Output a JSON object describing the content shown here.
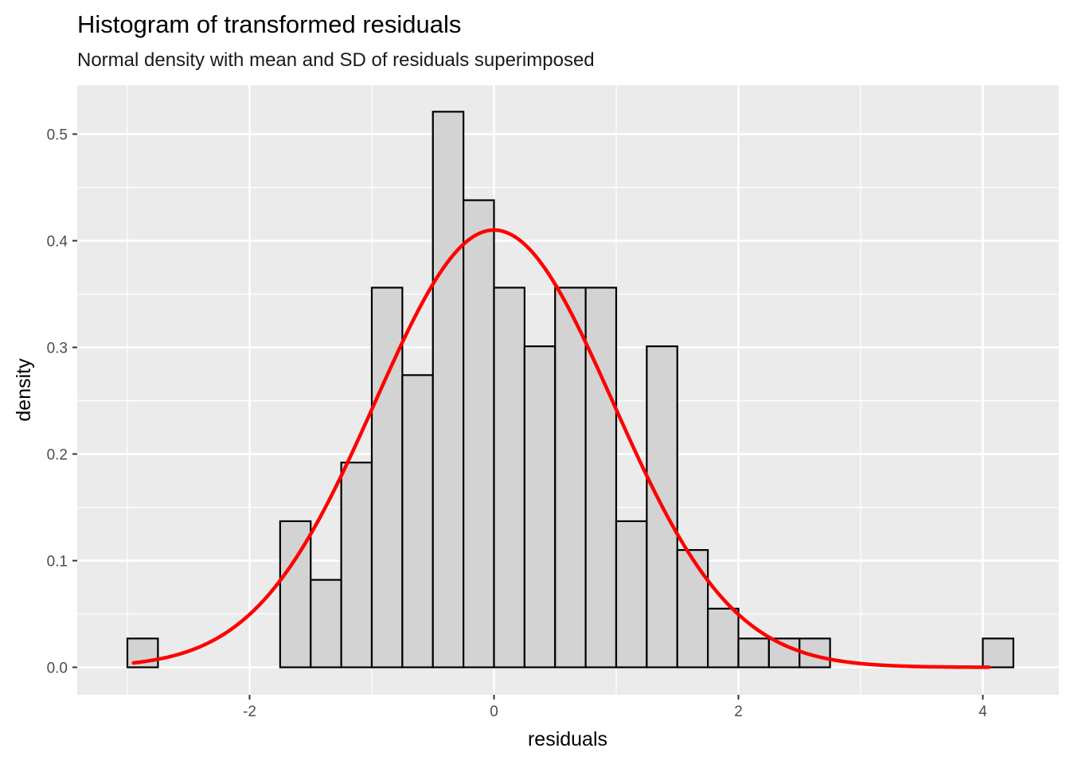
{
  "chart_data": {
    "type": "bar",
    "title": "Histogram of transformed residuals",
    "subtitle": "Normal density with mean and SD of residuals superimposed",
    "xlabel": "residuals",
    "ylabel": "density",
    "xlim": [
      -3.0,
      4.25
    ],
    "ylim": [
      0.0,
      0.52
    ],
    "x_ticks": [
      -2,
      0,
      2,
      4
    ],
    "x_tick_labels": [
      "-2",
      "0",
      "2",
      "4"
    ],
    "y_ticks": [
      0.0,
      0.1,
      0.2,
      0.3,
      0.4,
      0.5
    ],
    "y_tick_labels": [
      "0.0",
      "0.1",
      "0.2",
      "0.3",
      "0.4",
      "0.5"
    ],
    "grid": true,
    "bin_width": 0.25,
    "bins": [
      {
        "x": -2.875,
        "density": 0.027
      },
      {
        "x": -2.625,
        "density": 0.0
      },
      {
        "x": -2.375,
        "density": 0.0
      },
      {
        "x": -2.125,
        "density": 0.0
      },
      {
        "x": -1.875,
        "density": 0.0
      },
      {
        "x": -1.625,
        "density": 0.137
      },
      {
        "x": -1.375,
        "density": 0.082
      },
      {
        "x": -1.125,
        "density": 0.192
      },
      {
        "x": -0.875,
        "density": 0.356
      },
      {
        "x": -0.625,
        "density": 0.274
      },
      {
        "x": -0.375,
        "density": 0.521
      },
      {
        "x": -0.125,
        "density": 0.438
      },
      {
        "x": 0.125,
        "density": 0.356
      },
      {
        "x": 0.375,
        "density": 0.301
      },
      {
        "x": 0.625,
        "density": 0.356
      },
      {
        "x": 0.875,
        "density": 0.356
      },
      {
        "x": 1.125,
        "density": 0.137
      },
      {
        "x": 1.375,
        "density": 0.301
      },
      {
        "x": 1.625,
        "density": 0.11
      },
      {
        "x": 1.875,
        "density": 0.055
      },
      {
        "x": 2.125,
        "density": 0.027
      },
      {
        "x": 2.375,
        "density": 0.027
      },
      {
        "x": 2.625,
        "density": 0.027
      },
      {
        "x": 2.875,
        "density": 0.0
      },
      {
        "x": 3.125,
        "density": 0.0
      },
      {
        "x": 3.375,
        "density": 0.0
      },
      {
        "x": 3.625,
        "density": 0.0
      },
      {
        "x": 3.875,
        "density": 0.0
      },
      {
        "x": 4.125,
        "density": 0.027
      }
    ],
    "normal_curve": {
      "mean": 0.0,
      "sd": 0.973,
      "x_range": [
        -2.95,
        4.05
      ],
      "color": "#ff0000"
    },
    "colors": {
      "panel": "#ebebeb",
      "grid": "#ffffff",
      "bar_fill": "#d3d3d3",
      "bar_stroke": "#000000",
      "curve": "#ff0000"
    }
  }
}
